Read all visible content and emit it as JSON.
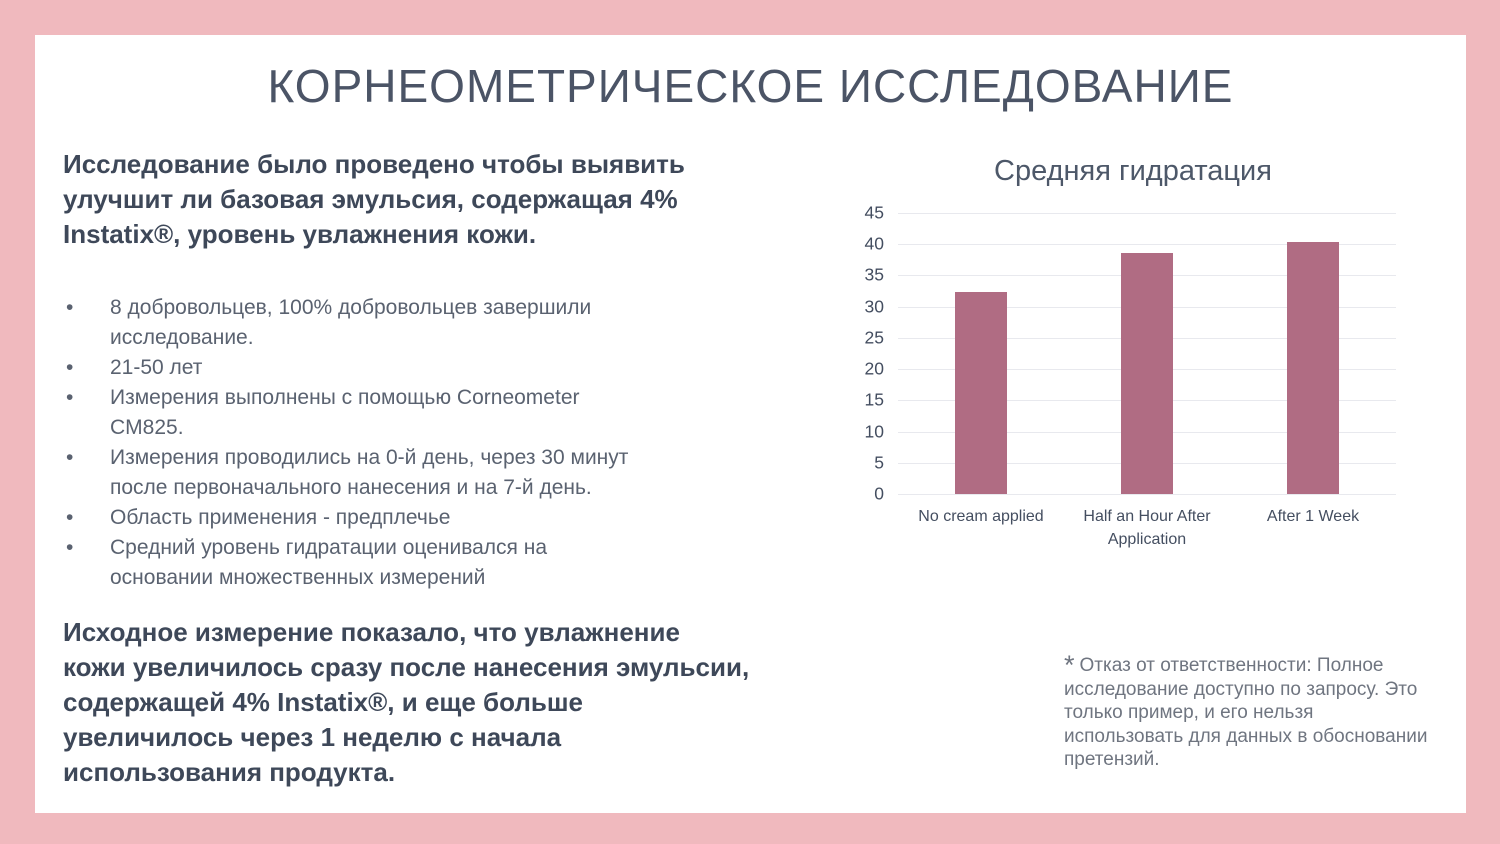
{
  "slide": {
    "title": "КОРНЕОМЕТРИЧЕСКОЕ ИССЛЕДОВАНИЕ",
    "intro": "Исследование было проведено чтобы выявить\nулучшит ли базовая эмульсия, содержащая 4%\nInstatix®, уровень увлажнения кожи.",
    "bullets": [
      "8 добровольцев, 100% добровольцев завершили\nисследование.",
      "21-50 лет",
      "Измерения выполнены с помощью Corneometer\nCM825.",
      "Измерения проводились на 0-й день, через 30 минут\nпосле первоначального нанесения и на 7-й день.",
      "Область применения - предплечье",
      "Средний уровень гидратации оценивался на\nосновании множественных измерений"
    ],
    "conclusion": "Исходное измерение показало, что увлажнение\nкожи увеличилось сразу после нанесения эмульсии,\nсодержащей 4% Instatix®, и еще больше\nувеличилось через 1 неделю с начала\nиспользования продукта.",
    "disclaimer": {
      "marker": "*",
      "text": "Отказ от ответственности: Полное\nисследование доступно по запросу. Это\nтолько пример, и его нельзя\nиспользовать для данных в обосновании\nпретензий."
    }
  },
  "chart_data": {
    "type": "bar",
    "title": "Средняя гидратация",
    "categories": [
      "No cream applied",
      "Half an Hour After Application",
      "After 1 Week"
    ],
    "values": [
      32.4,
      38.6,
      40.4
    ],
    "xlabel": "",
    "ylabel": "",
    "ylim": [
      0,
      45
    ],
    "ytick_step": 5,
    "grid": true,
    "legend": false,
    "bar_color": "#b06c83"
  },
  "colors": {
    "frame": "#f0b9be",
    "slide_background": "#ffffff",
    "heading": "#4b5466",
    "body_bold_text": "#3e4859",
    "bullet_text": "#5a6270",
    "axis_text": "#444e60",
    "chart_title_text": "#4d5869",
    "disclaimer_text": "#6f7580",
    "gridline": "#e8e9ee",
    "bar": "#b06c83"
  }
}
